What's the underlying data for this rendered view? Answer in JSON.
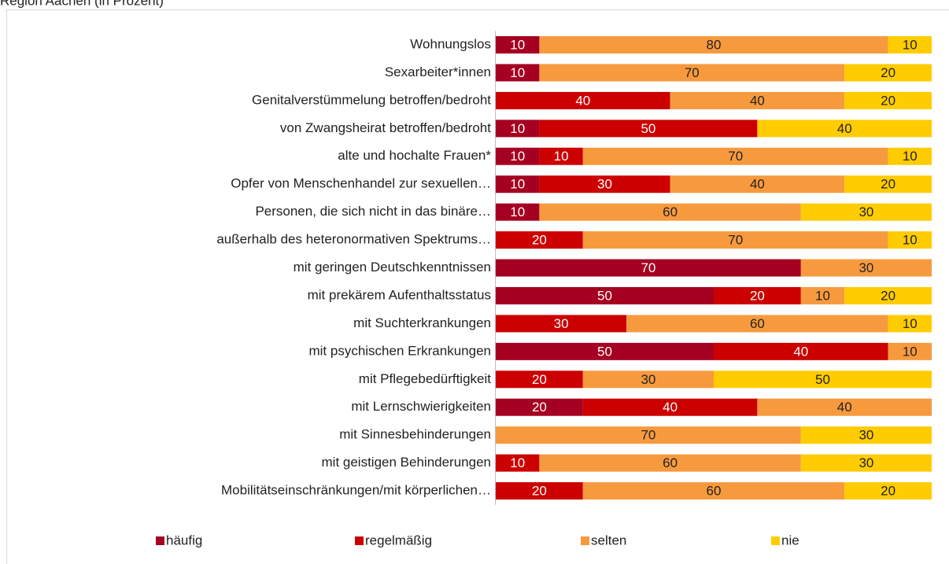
{
  "chart_data": {
    "type": "stacked-bar-horizontal",
    "title": "Region Aachen (in Prozent)",
    "categories": [
      "Wohnungslos",
      "Sexarbeiter*innen",
      "Genitalverstümmelung betroffen/bedroht",
      "von Zwangsheirat betroffen/bedroht",
      "alte und hochalte Frauen*",
      "Opfer von Menschenhandel zur sexuellen…",
      "Personen, die sich nicht in das binäre…",
      "außerhalb des heteronormativen Spektrums…",
      "mit geringen Deutschkenntnissen",
      "mit prekärem Aufenthaltsstatus",
      "mit Suchterkrankungen",
      "mit psychischen Erkrankungen",
      "mit Pflegebedürftigkeit",
      "mit Lernschwierigkeiten",
      "mit Sinnesbehinderungen",
      "mit geistigen Behinderungen",
      "Mobilitätseinschränkungen/mit körperlichen…"
    ],
    "series": [
      {
        "name": "häufig",
        "color": "#a50021",
        "values": [
          10,
          10,
          null,
          10,
          10,
          10,
          10,
          null,
          70,
          50,
          null,
          50,
          null,
          20,
          null,
          null,
          null
        ]
      },
      {
        "name": "regelmäßig",
        "color": "#cc0000",
        "values": [
          null,
          null,
          40,
          50,
          10,
          30,
          null,
          20,
          null,
          20,
          30,
          40,
          20,
          40,
          null,
          10,
          20
        ]
      },
      {
        "name": "selten",
        "color": "#f79a3e",
        "values": [
          80,
          70,
          40,
          null,
          70,
          40,
          60,
          70,
          30,
          10,
          60,
          10,
          30,
          40,
          70,
          60,
          60
        ]
      },
      {
        "name": "nie",
        "color": "#ffcc00",
        "values": [
          10,
          20,
          20,
          40,
          10,
          20,
          30,
          10,
          null,
          20,
          10,
          null,
          50,
          null,
          30,
          30,
          20
        ]
      }
    ],
    "xlim": [
      0,
      100
    ]
  }
}
